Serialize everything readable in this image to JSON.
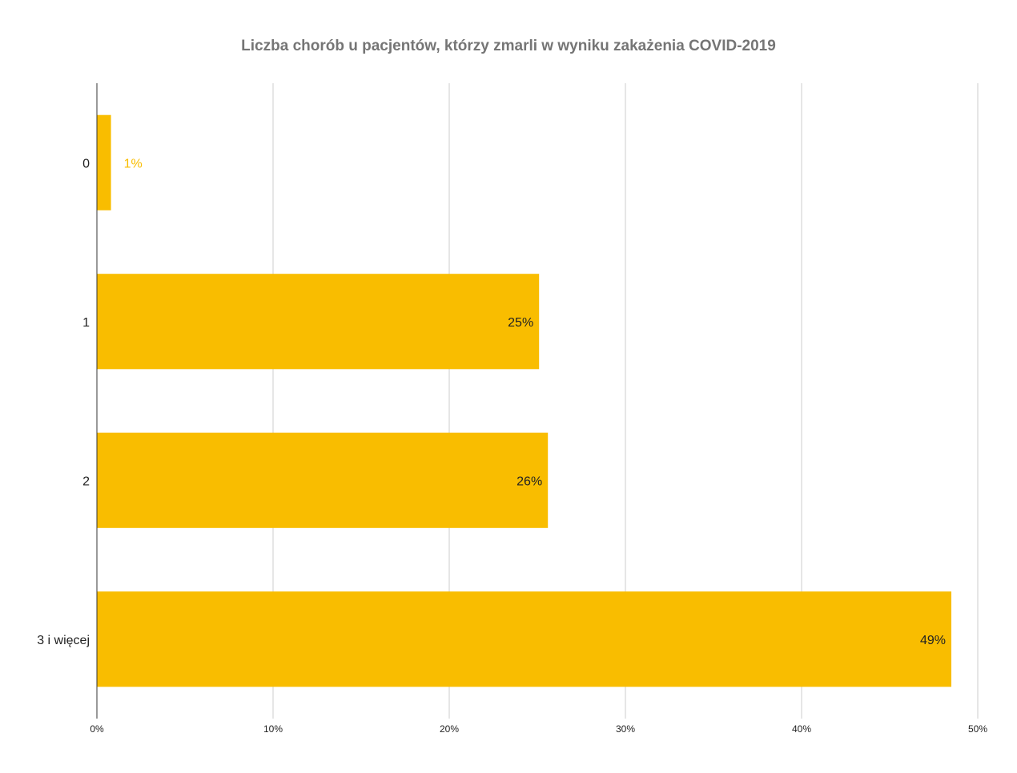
{
  "chart_data": {
    "type": "bar",
    "orientation": "horizontal",
    "title": "Liczba chorób u pacjentów, którzy zmarli w wyniku zakażenia COVID-2019",
    "xlabel": "",
    "ylabel": "",
    "categories": [
      "0",
      "1",
      "2",
      "3 i więcej"
    ],
    "values": [
      0.8,
      25.1,
      25.6,
      48.5
    ],
    "data_labels": [
      "1%",
      "25%",
      "26%",
      "49%"
    ],
    "xlim": [
      0,
      50
    ],
    "x_ticks": [
      0,
      10,
      20,
      30,
      40,
      50
    ],
    "x_tick_labels": [
      "0%",
      "10%",
      "20%",
      "30%",
      "40%",
      "50%"
    ],
    "grid": true,
    "legend": "none",
    "colors": {
      "bar": "#F9BD00",
      "grid": "#CCCCCC",
      "axis": "#333333",
      "title": "#757575",
      "label_inside": "#222222",
      "label_outside": "#F9BD00"
    }
  }
}
